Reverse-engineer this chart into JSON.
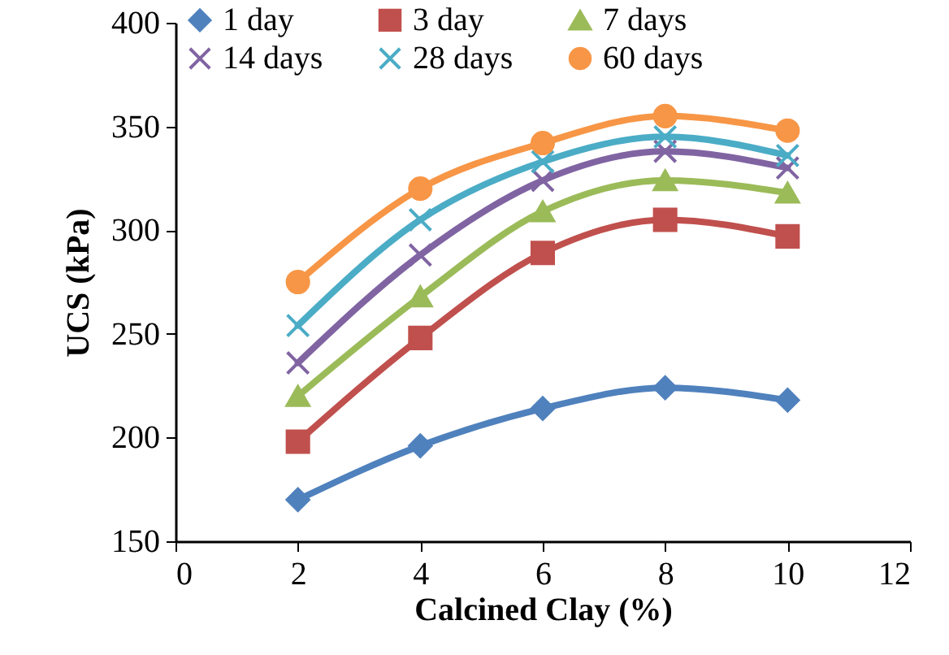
{
  "chart_data": {
    "type": "line",
    "xlabel": "Calcined Clay (%)",
    "ylabel": "UCS (kPa)",
    "x": [
      2,
      4,
      6,
      8,
      10
    ],
    "xlim": [
      0,
      12
    ],
    "xticks": [
      0,
      2,
      4,
      6,
      8,
      10,
      12
    ],
    "ylim": [
      150,
      400
    ],
    "yticks": [
      150,
      200,
      250,
      300,
      350,
      400
    ],
    "grid": false,
    "legend": "top",
    "line_style": "solid",
    "series": [
      {
        "name": "1 day",
        "color": "#4f81bd",
        "marker": "diamond",
        "values": [
          170,
          196,
          214,
          224,
          218
        ]
      },
      {
        "name": "3 day",
        "color": "#c0504d",
        "marker": "square",
        "values": [
          198,
          248,
          289,
          305,
          297
        ]
      },
      {
        "name": "7 days",
        "color": "#9bbb59",
        "marker": "triangle",
        "values": [
          220,
          268,
          309,
          324,
          318
        ]
      },
      {
        "name": "14 days",
        "color": "#8064a2",
        "marker": "cross",
        "values": [
          236,
          288,
          324,
          338,
          330
        ]
      },
      {
        "name": "28 days",
        "color": "#4bacc6",
        "marker": "cross",
        "values": [
          254,
          305,
          333,
          345,
          336
        ]
      },
      {
        "name": "60 days",
        "color": "#f79646",
        "marker": "circle",
        "values": [
          275,
          320,
          342,
          355,
          348
        ]
      }
    ]
  }
}
